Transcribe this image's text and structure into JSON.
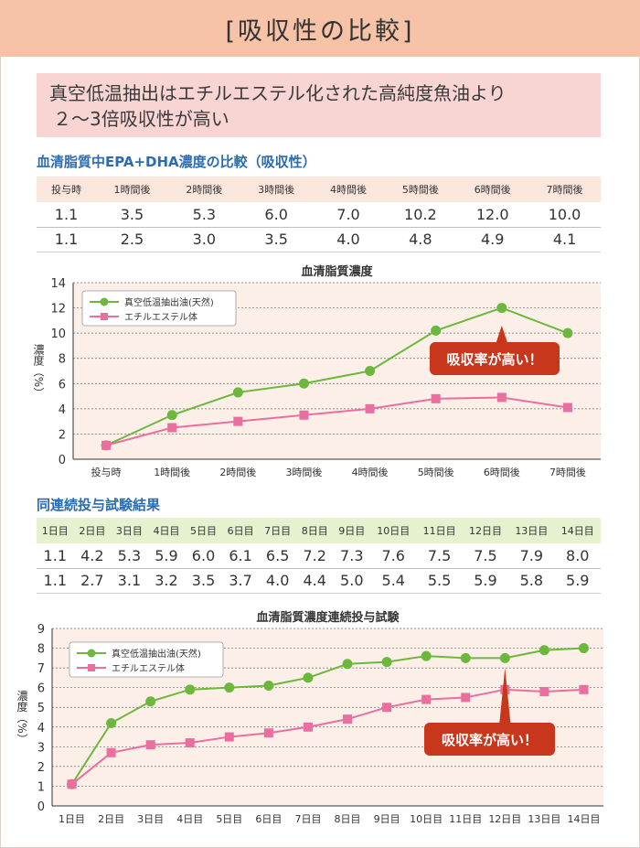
{
  "header": {
    "title": "[吸収性の比較]"
  },
  "subtitle": {
    "line1": "真空低温抽出はエチルエステル化された高純度魚油より",
    "line2": "２〜3倍吸収性が高い"
  },
  "section1": {
    "title": "血清脂質中EPA+DHA濃度の比較（吸収性）",
    "headers": [
      "投与時",
      "1時間後",
      "2時間後",
      "3時間後",
      "4時間後",
      "5時間後",
      "6時間後",
      "7時間後"
    ],
    "rows": [
      [
        "1.1",
        "3.5",
        "5.3",
        "6.0",
        "7.0",
        "10.2",
        "12.0",
        "10.0"
      ],
      [
        "1.1",
        "2.5",
        "3.0",
        "3.5",
        "4.0",
        "4.8",
        "4.9",
        "4.1"
      ]
    ]
  },
  "section2": {
    "title": "同連続投与試験結果",
    "headers": [
      "1日目",
      "2日目",
      "3日目",
      "4日目",
      "5日目",
      "6日目",
      "7日目",
      "8日目",
      "9日目",
      "10日目",
      "11日目",
      "12日目",
      "13日目",
      "14日目"
    ],
    "rows": [
      [
        "1.1",
        "4.2",
        "5.3",
        "5.9",
        "6.0",
        "6.1",
        "6.5",
        "7.2",
        "7.3",
        "7.6",
        "7.5",
        "7.5",
        "7.9",
        "8.0"
      ],
      [
        "1.1",
        "2.7",
        "3.1",
        "3.2",
        "3.5",
        "3.7",
        "4.0",
        "4.4",
        "5.0",
        "5.4",
        "5.5",
        "5.9",
        "5.8",
        "5.9"
      ]
    ]
  },
  "colors": {
    "green": "#6cb83c",
    "pink": "#ea6fa0",
    "callout": "#c8361c",
    "plot_bg": "#fcefe8",
    "grid": "#6b6b6b"
  },
  "chart_data": [
    {
      "type": "line",
      "title": "血清脂質濃度",
      "ylabel": "濃度（%）",
      "xlabel": "",
      "categories": [
        "投与時",
        "1時間後",
        "2時間後",
        "3時間後",
        "4時間後",
        "5時間後",
        "6時間後",
        "7時間後"
      ],
      "ylim": [
        0,
        14
      ],
      "yticks": [
        0,
        2,
        4,
        6,
        8,
        10,
        12,
        14
      ],
      "series": [
        {
          "name": "真空低温抽出油(天然)",
          "values": [
            1.1,
            3.5,
            5.3,
            6.0,
            7.0,
            10.2,
            12.0,
            10.0
          ]
        },
        {
          "name": "エチルエステル体",
          "values": [
            1.1,
            2.5,
            3.0,
            3.5,
            4.0,
            4.8,
            4.9,
            4.1
          ]
        }
      ],
      "annotation": {
        "text": "吸収率が高い！",
        "category_index": 6
      },
      "legend": "top-left",
      "grid": true
    },
    {
      "type": "line",
      "title": "血清脂質濃度連続投与試験",
      "ylabel": "濃度（%）",
      "xlabel": "",
      "categories": [
        "1日目",
        "2日目",
        "3日目",
        "4日目",
        "5日目",
        "6日目",
        "7日目",
        "8日目",
        "9日目",
        "10日目",
        "11日目",
        "12日目",
        "13日目",
        "14日目"
      ],
      "ylim": [
        0,
        9
      ],
      "yticks": [
        0,
        1,
        2,
        3,
        4,
        5,
        6,
        7,
        8,
        9
      ],
      "series": [
        {
          "name": "真空低温抽出油(天然)",
          "values": [
            1.1,
            4.2,
            5.3,
            5.9,
            6.0,
            6.1,
            6.5,
            7.2,
            7.3,
            7.6,
            7.5,
            7.5,
            7.9,
            8.0
          ]
        },
        {
          "name": "エチルエステル体",
          "values": [
            1.1,
            2.7,
            3.1,
            3.2,
            3.5,
            3.7,
            4.0,
            4.4,
            5.0,
            5.4,
            5.5,
            5.9,
            5.8,
            5.9
          ]
        }
      ],
      "annotation": {
        "text": "吸収率が高い！",
        "category_index": 11
      },
      "legend": "top-left",
      "grid": true
    }
  ]
}
